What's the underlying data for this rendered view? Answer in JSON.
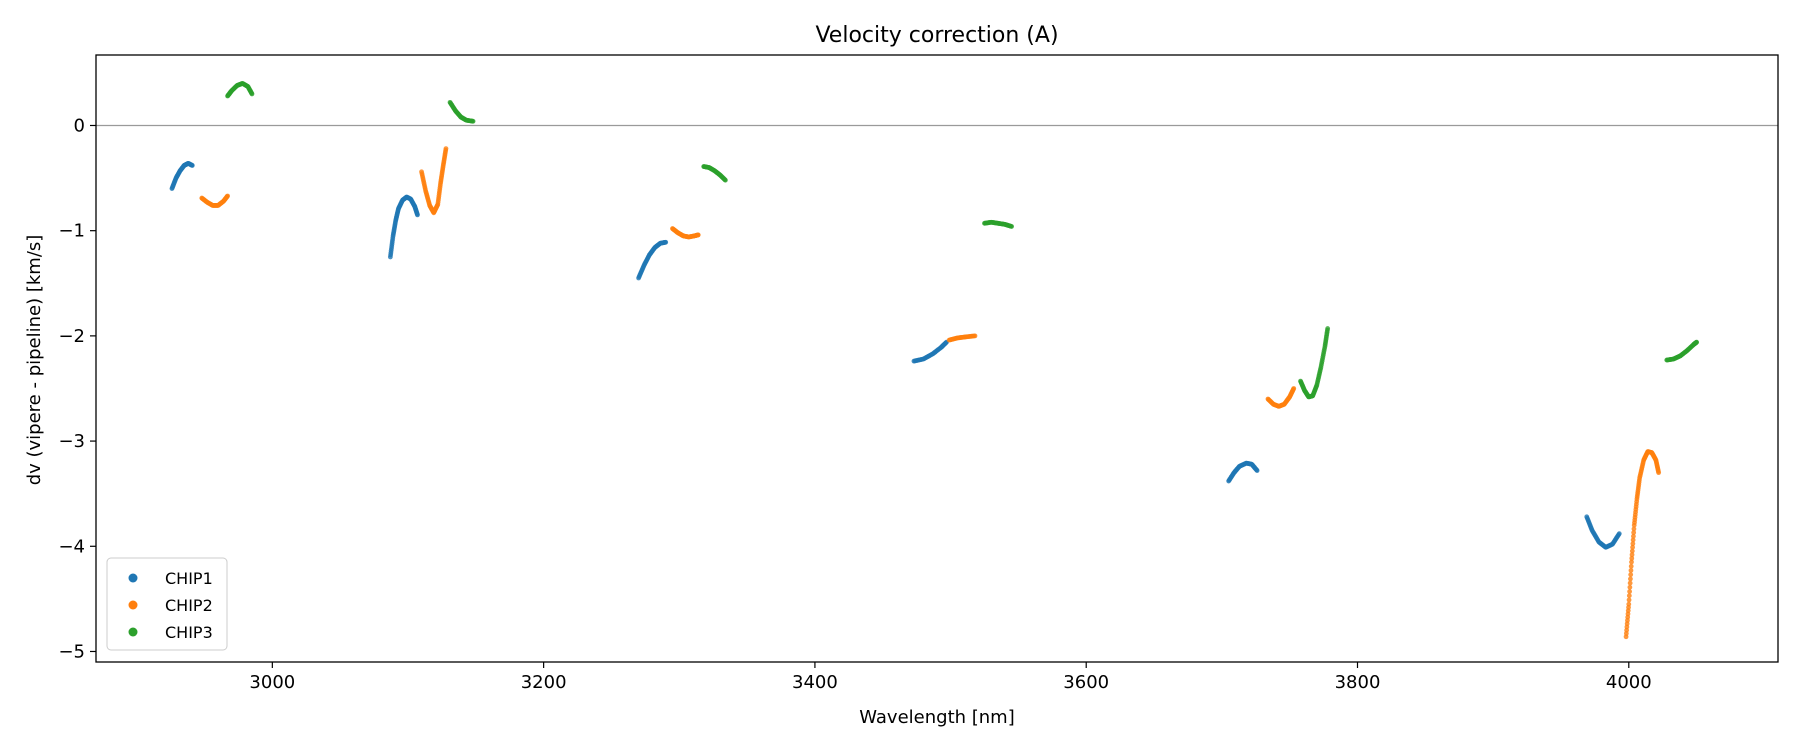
{
  "chart_data": {
    "type": "scatter",
    "title": "Velocity correction (A)",
    "xlabel": "Wavelength [nm]",
    "ylabel": "dv (vipere - pipeline) [km/s]",
    "xlim": [
      2870,
      4110
    ],
    "ylim": [
      -5.1,
      0.67
    ],
    "xticks": [
      3000,
      3200,
      3400,
      3600,
      3800,
      4000
    ],
    "yticks": [
      0,
      -1,
      -2,
      -3,
      -4,
      -5
    ],
    "yticklabels": [
      "0",
      "−1",
      "−2",
      "−3",
      "−4",
      "−5"
    ],
    "reference_line_y": 0,
    "legend_position": "lower-left",
    "series": [
      {
        "name": "CHIP1",
        "color": "#1f77b4",
        "segments": [
          [
            [
              2926,
              -0.6
            ],
            [
              2929,
              -0.5
            ],
            [
              2932,
              -0.43
            ],
            [
              2935,
              -0.38
            ],
            [
              2938,
              -0.36
            ],
            [
              2941,
              -0.38
            ]
          ],
          [
            [
              3087,
              -1.25
            ],
            [
              3089,
              -1.05
            ],
            [
              3091,
              -0.9
            ],
            [
              3093,
              -0.79
            ],
            [
              3096,
              -0.71
            ],
            [
              3099,
              -0.68
            ],
            [
              3102,
              -0.7
            ],
            [
              3105,
              -0.77
            ],
            [
              3107,
              -0.85
            ]
          ],
          [
            [
              3270,
              -1.45
            ],
            [
              3274,
              -1.33
            ],
            [
              3278,
              -1.23
            ],
            [
              3282,
              -1.16
            ],
            [
              3286,
              -1.12
            ],
            [
              3290,
              -1.11
            ]
          ],
          [
            [
              3473,
              -2.24
            ],
            [
              3480,
              -2.22
            ],
            [
              3487,
              -2.17
            ],
            [
              3493,
              -2.11
            ],
            [
              3497,
              -2.06
            ]
          ],
          [
            [
              3705,
              -3.38
            ],
            [
              3709,
              -3.3
            ],
            [
              3713,
              -3.24
            ],
            [
              3718,
              -3.21
            ],
            [
              3722,
              -3.22
            ],
            [
              3726,
              -3.28
            ]
          ],
          [
            [
              3969,
              -3.72
            ],
            [
              3973,
              -3.85
            ],
            [
              3978,
              -3.96
            ],
            [
              3983,
              -4.01
            ],
            [
              3988,
              -3.98
            ],
            [
              3993,
              -3.88
            ]
          ]
        ]
      },
      {
        "name": "CHIP2",
        "color": "#ff7f0e",
        "segments": [
          [
            [
              2948,
              -0.69
            ],
            [
              2952,
              -0.73
            ],
            [
              2956,
              -0.76
            ],
            [
              2960,
              -0.76
            ],
            [
              2964,
              -0.72
            ],
            [
              2967,
              -0.67
            ]
          ],
          [
            [
              3110,
              -0.44
            ],
            [
              3113,
              -0.62
            ],
            [
              3116,
              -0.76
            ],
            [
              3119,
              -0.83
            ],
            [
              3122,
              -0.75
            ],
            [
              3124,
              -0.55
            ],
            [
              3126,
              -0.38
            ],
            [
              3128,
              -0.22
            ]
          ],
          [
            [
              3295,
              -0.98
            ],
            [
              3299,
              -1.02
            ],
            [
              3303,
              -1.05
            ],
            [
              3307,
              -1.06
            ],
            [
              3311,
              -1.05
            ],
            [
              3314,
              -1.04
            ]
          ],
          [
            [
              3499,
              -2.04
            ],
            [
              3505,
              -2.02
            ],
            [
              3511,
              -2.01
            ],
            [
              3518,
              -2.0
            ]
          ],
          [
            [
              3734,
              -2.6
            ],
            [
              3738,
              -2.65
            ],
            [
              3742,
              -2.67
            ],
            [
              3746,
              -2.65
            ],
            [
              3750,
              -2.58
            ],
            [
              3753,
              -2.5
            ]
          ],
          [
            [
              3998,
              -4.86
            ],
            [
              4000,
              -4.55
            ],
            [
              4002,
              -4.15
            ],
            [
              4004,
              -3.8
            ],
            [
              4006,
              -3.55
            ],
            [
              4008,
              -3.35
            ],
            [
              4011,
              -3.18
            ],
            [
              4014,
              -3.1
            ],
            [
              4017,
              -3.11
            ],
            [
              4020,
              -3.18
            ],
            [
              4022,
              -3.3
            ]
          ]
        ]
      },
      {
        "name": "CHIP3",
        "color": "#2ca02c",
        "segments": [
          [
            [
              2967,
              0.28
            ],
            [
              2970,
              0.33
            ],
            [
              2974,
              0.38
            ],
            [
              2978,
              0.4
            ],
            [
              2982,
              0.37
            ],
            [
              2985,
              0.3
            ]
          ],
          [
            [
              3131,
              0.22
            ],
            [
              3135,
              0.14
            ],
            [
              3139,
              0.08
            ],
            [
              3143,
              0.05
            ],
            [
              3148,
              0.04
            ]
          ],
          [
            [
              3318,
              -0.39
            ],
            [
              3322,
              -0.4
            ],
            [
              3326,
              -0.43
            ],
            [
              3330,
              -0.47
            ],
            [
              3334,
              -0.52
            ]
          ],
          [
            [
              3525,
              -0.93
            ],
            [
              3530,
              -0.92
            ],
            [
              3535,
              -0.93
            ],
            [
              3540,
              -0.94
            ],
            [
              3545,
              -0.96
            ]
          ],
          [
            [
              3758,
              -2.43
            ],
            [
              3761,
              -2.52
            ],
            [
              3764,
              -2.58
            ],
            [
              3767,
              -2.57
            ],
            [
              3770,
              -2.47
            ],
            [
              3773,
              -2.3
            ],
            [
              3776,
              -2.1
            ],
            [
              3778,
              -1.93
            ]
          ],
          [
            [
              4028,
              -2.23
            ],
            [
              4033,
              -2.22
            ],
            [
              4038,
              -2.19
            ],
            [
              4043,
              -2.14
            ],
            [
              4048,
              -2.08
            ],
            [
              4050,
              -2.06
            ]
          ]
        ]
      }
    ]
  }
}
